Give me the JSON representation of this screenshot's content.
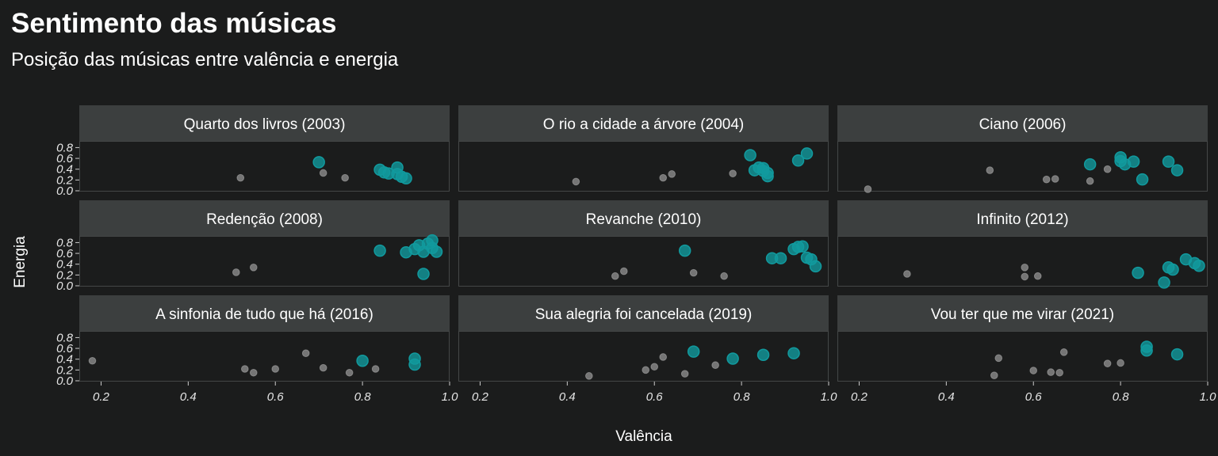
{
  "title": "Sentimento das músicas",
  "subtitle": "Posição das músicas entre valência e energia",
  "colors": {
    "background": "#1b1c1c",
    "strip": "#3c3f3f",
    "panel_border": "#444747",
    "highlight": "#119a9e",
    "other": "#7a7a7a"
  },
  "chart_data": {
    "type": "scatter",
    "xlabel": "Valência",
    "ylabel": "Energia",
    "xlim": [
      0.15,
      1.0
    ],
    "ylim": [
      0.0,
      0.85
    ],
    "x_ticks": [
      "0.2",
      "0.4",
      "0.6",
      "0.8",
      "1.0"
    ],
    "y_ticks": [
      "0.0",
      "0.2",
      "0.4",
      "0.6",
      "0.8"
    ],
    "grid": false,
    "facets": [
      {
        "name": "Quarto dos livros (2003)",
        "highlight": [
          [
            0.7,
            0.53
          ],
          [
            0.84,
            0.39
          ],
          [
            0.85,
            0.34
          ],
          [
            0.86,
            0.32
          ],
          [
            0.88,
            0.43
          ],
          [
            0.88,
            0.31
          ],
          [
            0.89,
            0.26
          ],
          [
            0.9,
            0.23
          ]
        ],
        "other": [
          [
            0.52,
            0.24
          ],
          [
            0.71,
            0.33
          ],
          [
            0.76,
            0.24
          ]
        ]
      },
      {
        "name": "O rio a cidade a árvore (2004)",
        "highlight": [
          [
            0.82,
            0.66
          ],
          [
            0.83,
            0.38
          ],
          [
            0.84,
            0.43
          ],
          [
            0.85,
            0.37
          ],
          [
            0.85,
            0.42
          ],
          [
            0.86,
            0.33
          ],
          [
            0.86,
            0.27
          ],
          [
            0.93,
            0.56
          ],
          [
            0.95,
            0.69
          ]
        ],
        "other": [
          [
            0.42,
            0.17
          ],
          [
            0.62,
            0.24
          ],
          [
            0.64,
            0.31
          ],
          [
            0.78,
            0.32
          ]
        ]
      },
      {
        "name": "Ciano (2006)",
        "highlight": [
          [
            0.73,
            0.49
          ],
          [
            0.8,
            0.62
          ],
          [
            0.8,
            0.55
          ],
          [
            0.81,
            0.49
          ],
          [
            0.83,
            0.54
          ],
          [
            0.85,
            0.21
          ],
          [
            0.91,
            0.54
          ],
          [
            0.93,
            0.38
          ]
        ],
        "other": [
          [
            0.22,
            0.03
          ],
          [
            0.5,
            0.38
          ],
          [
            0.63,
            0.21
          ],
          [
            0.65,
            0.22
          ],
          [
            0.73,
            0.18
          ],
          [
            0.77,
            0.4
          ]
        ]
      },
      {
        "name": "Redenção (2008)",
        "highlight": [
          [
            0.84,
            0.65
          ],
          [
            0.9,
            0.62
          ],
          [
            0.92,
            0.68
          ],
          [
            0.93,
            0.75
          ],
          [
            0.94,
            0.63
          ],
          [
            0.94,
            0.22
          ],
          [
            0.95,
            0.78
          ],
          [
            0.96,
            0.7
          ],
          [
            0.97,
            0.63
          ],
          [
            0.96,
            0.84
          ]
        ],
        "other": [
          [
            0.51,
            0.25
          ],
          [
            0.55,
            0.34
          ]
        ]
      },
      {
        "name": "Revanche (2010)",
        "highlight": [
          [
            0.67,
            0.65
          ],
          [
            0.87,
            0.51
          ],
          [
            0.89,
            0.51
          ],
          [
            0.92,
            0.68
          ],
          [
            0.93,
            0.72
          ],
          [
            0.94,
            0.73
          ],
          [
            0.95,
            0.52
          ],
          [
            0.96,
            0.49
          ],
          [
            0.97,
            0.36
          ]
        ],
        "other": [
          [
            0.51,
            0.18
          ],
          [
            0.53,
            0.27
          ],
          [
            0.69,
            0.24
          ],
          [
            0.76,
            0.18
          ]
        ]
      },
      {
        "name": "Infinito (2012)",
        "highlight": [
          [
            0.84,
            0.24
          ],
          [
            0.9,
            0.06
          ],
          [
            0.91,
            0.34
          ],
          [
            0.92,
            0.3
          ],
          [
            0.95,
            0.49
          ],
          [
            0.97,
            0.42
          ],
          [
            0.98,
            0.37
          ]
        ],
        "other": [
          [
            0.31,
            0.22
          ],
          [
            0.58,
            0.34
          ],
          [
            0.58,
            0.17
          ],
          [
            0.61,
            0.18
          ]
        ]
      },
      {
        "name": "A sinfonia de tudo que há (2016)",
        "highlight": [
          [
            0.8,
            0.37
          ],
          [
            0.92,
            0.41
          ],
          [
            0.92,
            0.3
          ]
        ],
        "other": [
          [
            0.18,
            0.37
          ],
          [
            0.53,
            0.22
          ],
          [
            0.55,
            0.15
          ],
          [
            0.6,
            0.22
          ],
          [
            0.67,
            0.51
          ],
          [
            0.71,
            0.24
          ],
          [
            0.77,
            0.15
          ],
          [
            0.83,
            0.22
          ]
        ]
      },
      {
        "name": "Sua alegria foi cancelada (2019)",
        "highlight": [
          [
            0.69,
            0.54
          ],
          [
            0.78,
            0.41
          ],
          [
            0.85,
            0.48
          ],
          [
            0.92,
            0.51
          ]
        ],
        "other": [
          [
            0.45,
            0.09
          ],
          [
            0.58,
            0.2
          ],
          [
            0.6,
            0.26
          ],
          [
            0.62,
            0.44
          ],
          [
            0.67,
            0.13
          ],
          [
            0.74,
            0.29
          ]
        ]
      },
      {
        "name": "Vou ter que me virar (2021)",
        "highlight": [
          [
            0.86,
            0.63
          ],
          [
            0.86,
            0.56
          ],
          [
            0.93,
            0.49
          ]
        ],
        "other": [
          [
            0.51,
            0.1
          ],
          [
            0.52,
            0.42
          ],
          [
            0.6,
            0.19
          ],
          [
            0.64,
            0.16
          ],
          [
            0.66,
            0.15
          ],
          [
            0.67,
            0.53
          ],
          [
            0.77,
            0.32
          ],
          [
            0.8,
            0.33
          ]
        ]
      }
    ]
  }
}
